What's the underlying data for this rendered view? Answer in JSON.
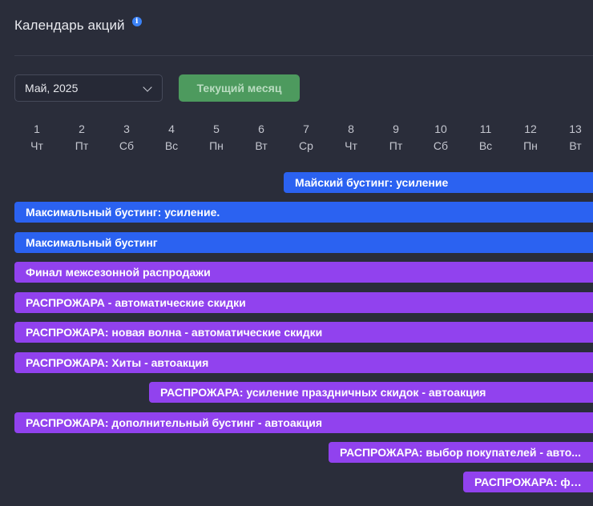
{
  "header": {
    "title": "Календарь акций",
    "info_icon": "info-icon"
  },
  "controls": {
    "month_select_value": "Май, 2025",
    "current_month_label": "Текущий месяц"
  },
  "colors": {
    "blue": "#2b62f1",
    "purple": "#9142ee",
    "green_button": "#4d9a5e"
  },
  "days": [
    {
      "num": "1",
      "wd": "Чт"
    },
    {
      "num": "2",
      "wd": "Пт"
    },
    {
      "num": "3",
      "wd": "Сб"
    },
    {
      "num": "4",
      "wd": "Вс"
    },
    {
      "num": "5",
      "wd": "Пн"
    },
    {
      "num": "6",
      "wd": "Вт"
    },
    {
      "num": "7",
      "wd": "Ср"
    },
    {
      "num": "8",
      "wd": "Чт"
    },
    {
      "num": "9",
      "wd": "Пт"
    },
    {
      "num": "10",
      "wd": "Сб"
    },
    {
      "num": "11",
      "wd": "Вс"
    },
    {
      "num": "12",
      "wd": "Пн"
    },
    {
      "num": "13",
      "wd": "Вт"
    }
  ],
  "promotions": [
    {
      "label": "Майский бустинг: усиление",
      "color": "blue"
    },
    {
      "label": "Максимальный бустинг: усиление.",
      "color": "blue"
    },
    {
      "label": "Максимальный бустинг",
      "color": "blue"
    },
    {
      "label": "Финал межсезонной распродажи",
      "color": "purple"
    },
    {
      "label": "РАСПРОЖАРА - автоматические скидки",
      "color": "purple"
    },
    {
      "label": "РАСПРОЖАРА: новая волна - автоматические скидки",
      "color": "purple"
    },
    {
      "label": "РАСПРОЖАРА: Хиты - автоакция",
      "color": "purple"
    },
    {
      "label": "РАСПРОЖАРА: усиление праздничных скидок - автоакция",
      "color": "purple"
    },
    {
      "label": "РАСПРОЖАРА: дополнительный бустинг - автоакция",
      "color": "purple"
    },
    {
      "label": "РАСПРОЖАРА: выбор покупателей - авто...",
      "color": "purple"
    },
    {
      "label": "РАСПРОЖАРА: фи...",
      "color": "purple"
    }
  ]
}
